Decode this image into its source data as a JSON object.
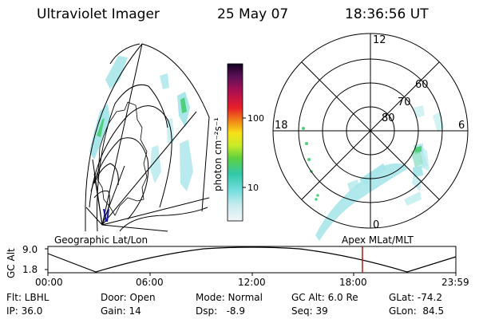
{
  "header": {
    "instrument": "Ultraviolet Imager",
    "date": "25 May 07",
    "time": "18:36:56 UT"
  },
  "colorbar": {
    "label": "photon cm⁻²s⁻¹",
    "ticks": [
      "100",
      "10"
    ]
  },
  "polar": {
    "lat_labels": [
      "80",
      "70",
      "60"
    ],
    "mlt_labels": {
      "top": "12",
      "left": "18",
      "right": "6",
      "bottom": "0"
    }
  },
  "captions": {
    "left": "Geographic Lat/Lon",
    "right": "Apex MLat/MLT"
  },
  "timeline": {
    "ylabel": "GC Alt",
    "y_ticks": [
      "9.0",
      "1.8"
    ],
    "x_ticks": [
      "00:00",
      "06:00",
      "12:00",
      "18:00",
      "23:59"
    ],
    "marker_time": "18:36:56"
  },
  "status": {
    "row1": {
      "flt": "Flt: LBHL",
      "door": "Door: Open",
      "mode": "Mode: Normal",
      "gcalt": "GC Alt: 6.0 Re",
      "glat": "GLat: -74.2"
    },
    "row2": {
      "ip": "IP: 36.0",
      "gain": "Gain: 14",
      "dsp": "Dsp:   -8.9",
      "seq": "Seq: 39",
      "glon": "GLon:  84.5"
    }
  },
  "colors": {
    "marker": "#b01818",
    "satellite_track": "#1a1aa0",
    "aurora_cyan": "#a8e6ea",
    "aurora_green": "#4fd07a"
  }
}
